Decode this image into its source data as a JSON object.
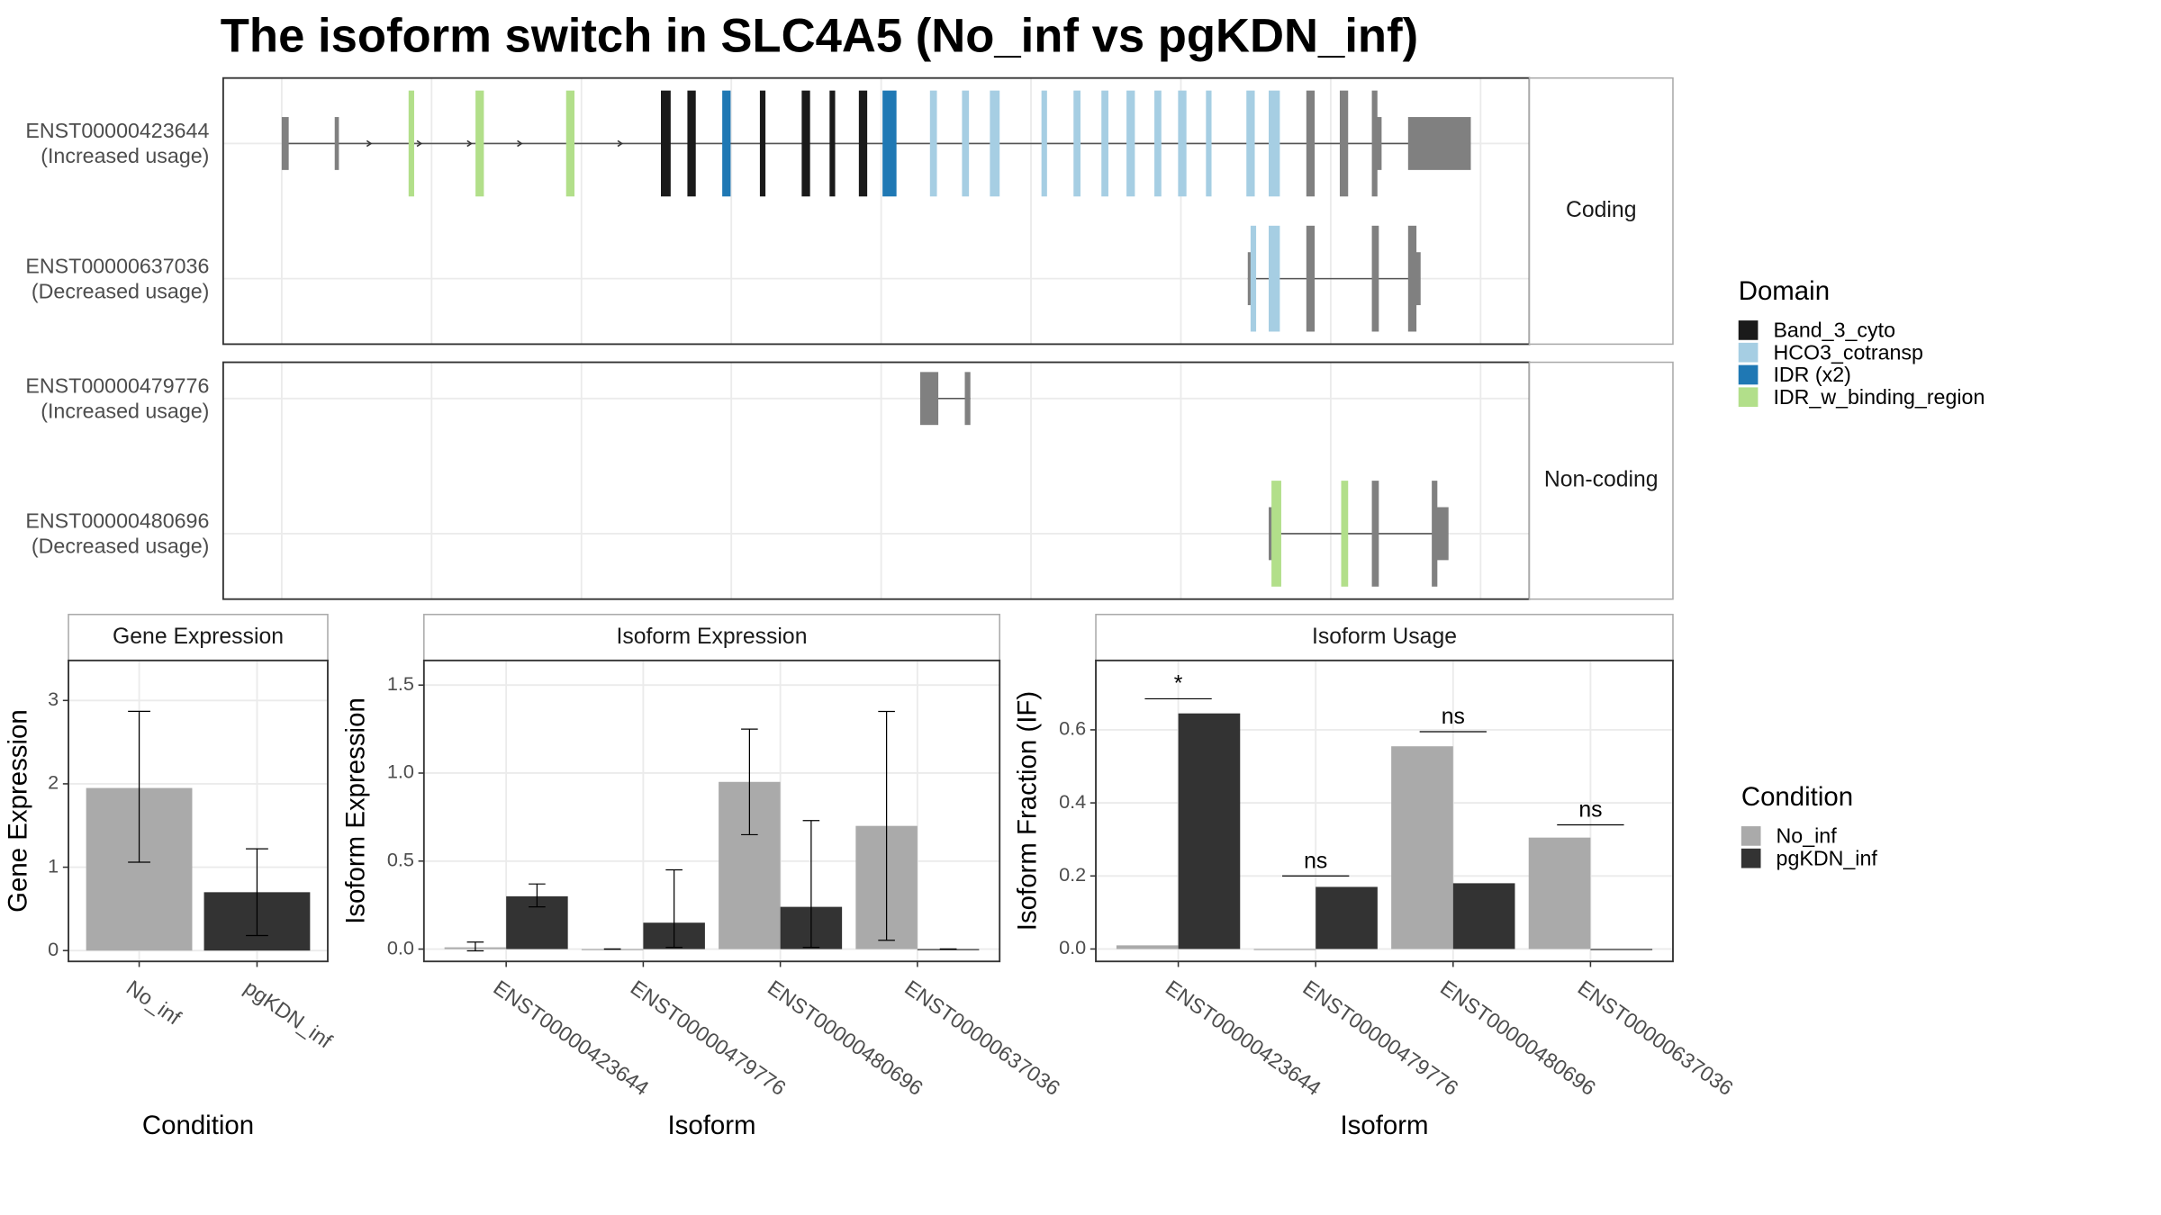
{
  "title": "The isoform switch in SLC4A5 (No_inf vs pgKDN_inf)",
  "transcript_panels": [
    {
      "label": "Coding",
      "transcripts": [
        {
          "id": "ENST00000423644",
          "usage": "(Increased usage)"
        },
        {
          "id": "ENST00000637036",
          "usage": "(Decreased usage)"
        }
      ]
    },
    {
      "label": "Non-coding",
      "transcripts": [
        {
          "id": "ENST00000479776",
          "usage": "(Increased usage)"
        },
        {
          "id": "ENST00000480696",
          "usage": "(Decreased usage)"
        }
      ]
    }
  ],
  "domain_legend": {
    "title": "Domain",
    "items": [
      {
        "name": "Band_3_cyto",
        "color": "#1a1a1a"
      },
      {
        "name": "HCO3_cotransp",
        "color": "#a6cee3"
      },
      {
        "name": "IDR (x2)",
        "color": "#1f78b4"
      },
      {
        "name": "IDR_w_binding_region",
        "color": "#b2df8a"
      }
    ]
  },
  "condition_legend": {
    "title": "Condition"
  },
  "chart_data": [
    {
      "type": "bar",
      "title": "Gene Expression",
      "xlabel": "Condition",
      "ylabel": "Gene Expression",
      "categories": [
        "No_inf",
        "pgKDN_inf"
      ],
      "values": [
        1.95,
        0.7
      ],
      "colors": [
        "#aaaaaa",
        "#333333"
      ],
      "lower": [
        1.06,
        0.18
      ],
      "upper": [
        2.87,
        1.22
      ],
      "ylim": [
        -0.13,
        3.48
      ],
      "yticks": [
        0,
        1,
        2,
        3
      ],
      "grid": true
    },
    {
      "type": "grouped_bar",
      "title": "Isoform Expression",
      "xlabel": "Isoform",
      "ylabel": "Isoform Expression",
      "categories": [
        "ENST00000423644",
        "ENST00000479776",
        "ENST00000480696",
        "ENST00000637036"
      ],
      "series": [
        {
          "name": "No_inf",
          "color": "#aaaaaa",
          "values": [
            0.01,
            0.0,
            0.95,
            0.7
          ],
          "lower": [
            -0.01,
            0.0,
            0.65,
            0.05
          ],
          "upper": [
            0.04,
            0.0,
            1.25,
            1.35
          ]
        },
        {
          "name": "pgKDN_inf",
          "color": "#333333",
          "values": [
            0.3,
            0.15,
            0.24,
            0.0
          ],
          "lower": [
            0.24,
            0.01,
            0.01,
            0.0
          ],
          "upper": [
            0.37,
            0.45,
            0.73,
            0.0
          ]
        }
      ],
      "ylim": [
        -0.07,
        1.64
      ],
      "yticks": [
        {
          "value": 0,
          "label": "0.0"
        },
        0.5,
        {
          "value": 1,
          "label": "1.0"
        },
        1.5
      ],
      "grid": true
    },
    {
      "type": "grouped_bar",
      "title": "Isoform Usage",
      "xlabel": "Isoform",
      "ylabel": "Isoform Fraction (IF)",
      "categories": [
        "ENST00000423644",
        "ENST00000479776",
        "ENST00000480696",
        "ENST00000637036"
      ],
      "series": [
        {
          "name": "No_inf",
          "color": "#aaaaaa",
          "values": [
            0.01,
            0.0,
            0.555,
            0.305
          ]
        },
        {
          "name": "pgKDN_inf",
          "color": "#333333",
          "values": [
            0.645,
            0.17,
            0.18,
            0.0
          ]
        }
      ],
      "annotations": [
        {
          "category": 0,
          "label": "*",
          "value": 0.685
        },
        {
          "category": 1,
          "label": "ns",
          "value": 0.2
        },
        {
          "category": 2,
          "label": "ns",
          "value": 0.595
        },
        {
          "category": 3,
          "label": "ns",
          "value": 0.34
        }
      ],
      "ylim": [
        -0.034,
        0.79
      ],
      "yticks": [
        {
          "value": 0,
          "label": "0.0"
        },
        0.2,
        0.4,
        0.6
      ],
      "grid": true
    }
  ]
}
